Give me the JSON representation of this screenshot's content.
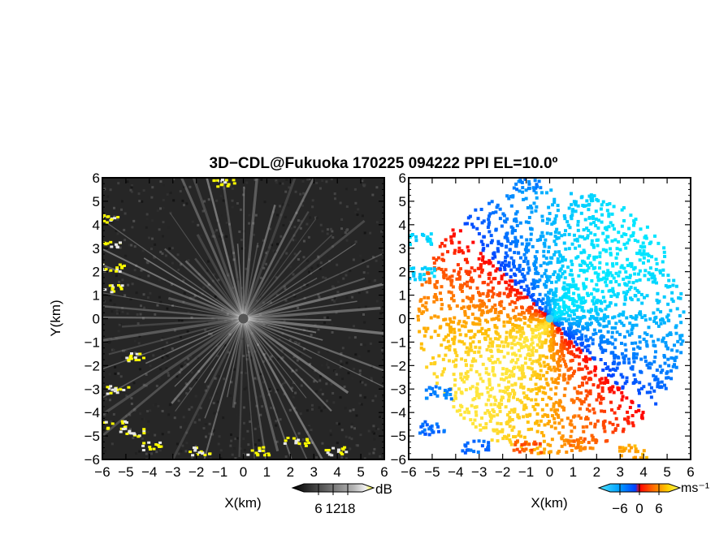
{
  "title": "3D−CDL@Fukuoka 170225 094222 PPI EL=10.0º",
  "chart_data": [
    {
      "type": "heatmap",
      "panel": "reflectivity",
      "xlabel": "X(km)",
      "ylabel": "Y(km)",
      "xlim": [
        -6,
        6
      ],
      "ylim": [
        -6,
        6
      ],
      "xticks": [
        "−6",
        "−5",
        "−4",
        "−3",
        "−2",
        "−1",
        "0",
        "1",
        "2",
        "3",
        "4",
        "5",
        "6"
      ],
      "yticks": [
        "−6",
        "−5",
        "−4",
        "−3",
        "−2",
        "−1",
        "0",
        "1",
        "2",
        "3",
        "4",
        "5",
        "6"
      ],
      "colorbar": {
        "unit": "dB",
        "range": [
          0,
          24
        ],
        "ticks": [
          6,
          12,
          18
        ],
        "tick_labels": [
          "6",
          "12",
          "18"
        ],
        "colors": [
          "#000000",
          "#3a3a3a",
          "#777777",
          "#b4b4b4",
          "#f0f0f0",
          "#ffff00"
        ]
      },
      "echoes": [
        {
          "x": -5.9,
          "y": 4.3,
          "value": 22
        },
        {
          "x": -5.7,
          "y": 3.2,
          "value": 22
        },
        {
          "x": -5.6,
          "y": 2.2,
          "value": 23
        },
        {
          "x": -5.7,
          "y": 1.3,
          "value": 20
        },
        {
          "x": -4.7,
          "y": -1.6,
          "value": 22
        },
        {
          "x": -5.4,
          "y": -3.0,
          "value": 21
        },
        {
          "x": -5.5,
          "y": -4.5,
          "value": 22
        },
        {
          "x": -4.8,
          "y": -4.8,
          "value": 23
        },
        {
          "x": -4.0,
          "y": -5.4,
          "value": 22
        },
        {
          "x": -1.9,
          "y": -5.6,
          "value": 23
        },
        {
          "x": 0.6,
          "y": -5.6,
          "value": 22
        },
        {
          "x": 2.2,
          "y": -5.2,
          "value": 22
        },
        {
          "x": 3.9,
          "y": -5.6,
          "value": 23
        },
        {
          "x": -0.9,
          "y": 5.8,
          "value": 22
        }
      ]
    },
    {
      "type": "heatmap",
      "panel": "doppler_velocity",
      "xlabel": "X(km)",
      "xlim": [
        -6,
        6
      ],
      "ylim": [
        -6,
        6
      ],
      "xticks": [
        "−6",
        "−5",
        "−4",
        "−3",
        "−2",
        "−1",
        "0",
        "1",
        "2",
        "3",
        "4",
        "5",
        "6"
      ],
      "yticks": [
        "−6",
        "−5",
        "−4",
        "−3",
        "−2",
        "−1",
        "0",
        "1",
        "2",
        "3",
        "4",
        "5",
        "6"
      ],
      "colorbar": {
        "unit": "ms⁻¹",
        "range": [
          -9,
          9
        ],
        "ticks": [
          -6,
          0,
          6
        ],
        "tick_labels": [
          "−6",
          "0",
          "6"
        ],
        "colors": [
          "#50e6ff",
          "#00a0ff",
          "#0040ff",
          "#ff0000",
          "#ff6000",
          "#ffd000",
          "#ffff60"
        ]
      },
      "flow_direction_deg": 225,
      "max_speed": 8
    }
  ]
}
